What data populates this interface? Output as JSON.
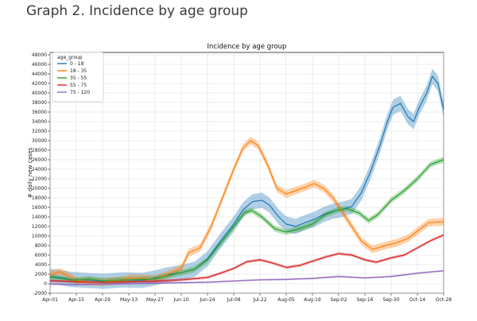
{
  "page": {
    "heading": "Graph 2. Incidence by age group"
  },
  "chart_data": {
    "type": "line",
    "title": "Incidence by age group",
    "xlabel": "",
    "ylabel": "# daily new cases",
    "ylim": [
      -2000,
      48500
    ],
    "yticks": [
      -2000,
      0,
      2000,
      4000,
      6000,
      8000,
      10000,
      12000,
      14000,
      16000,
      18000,
      20000,
      22000,
      24000,
      26000,
      28000,
      30000,
      32000,
      34000,
      36000,
      38000,
      40000,
      42000,
      44000,
      46000,
      48000
    ],
    "xlim": [
      "2020-04-01",
      "2020-10-28"
    ],
    "xticks": [
      {
        "date": "2020-04-01",
        "label": "Apr-01"
      },
      {
        "date": "2020-04-15",
        "label": "Apr-15"
      },
      {
        "date": "2020-04-29",
        "label": "Apr-29"
      },
      {
        "date": "2020-05-13",
        "label": "May-13"
      },
      {
        "date": "2020-05-27",
        "label": "May-27"
      },
      {
        "date": "2020-06-10",
        "label": "Jun-10"
      },
      {
        "date": "2020-06-24",
        "label": "Jun-24"
      },
      {
        "date": "2020-07-08",
        "label": "Jul-08"
      },
      {
        "date": "2020-07-22",
        "label": "Jul-22"
      },
      {
        "date": "2020-08-05",
        "label": "Aug-05"
      },
      {
        "date": "2020-08-19",
        "label": "Aug-19"
      },
      {
        "date": "2020-09-02",
        "label": "Sep-02"
      },
      {
        "date": "2020-09-16",
        "label": "Sep-16"
      },
      {
        "date": "2020-09-30",
        "label": "Sep-30"
      },
      {
        "date": "2020-10-14",
        "label": "Oct-14"
      },
      {
        "date": "2020-10-28",
        "label": "Oct-28"
      }
    ],
    "grid": true,
    "legend": {
      "title": "age_group",
      "placement": "top-left"
    },
    "series": [
      {
        "name": "0 - 18",
        "color": "#1f77b4",
        "points": [
          [
            "2020-04-01",
            1500
          ],
          [
            "2020-04-06",
            1300
          ],
          [
            "2020-04-12",
            900
          ],
          [
            "2020-04-20",
            700
          ],
          [
            "2020-04-29",
            500
          ],
          [
            "2020-05-10",
            800
          ],
          [
            "2020-05-20",
            700
          ],
          [
            "2020-05-27",
            1200
          ],
          [
            "2020-06-03",
            1900
          ],
          [
            "2020-06-10",
            2300
          ],
          [
            "2020-06-17",
            3000
          ],
          [
            "2020-06-24",
            5200
          ],
          [
            "2020-07-01",
            9000
          ],
          [
            "2020-07-08",
            12500
          ],
          [
            "2020-07-13",
            15500
          ],
          [
            "2020-07-18",
            17200
          ],
          [
            "2020-07-23",
            17500
          ],
          [
            "2020-07-27",
            16500
          ],
          [
            "2020-08-01",
            14000
          ],
          [
            "2020-08-05",
            12500
          ],
          [
            "2020-08-10",
            12000
          ],
          [
            "2020-08-15",
            12800
          ],
          [
            "2020-08-20",
            13500
          ],
          [
            "2020-08-25",
            14500
          ],
          [
            "2020-08-30",
            15200
          ],
          [
            "2020-09-04",
            15600
          ],
          [
            "2020-09-09",
            16200
          ],
          [
            "2020-09-14",
            19000
          ],
          [
            "2020-09-19",
            23500
          ],
          [
            "2020-09-24",
            29000
          ],
          [
            "2020-09-28",
            34000
          ],
          [
            "2020-10-01",
            37000
          ],
          [
            "2020-10-05",
            37800
          ],
          [
            "2020-10-09",
            35000
          ],
          [
            "2020-10-12",
            34000
          ],
          [
            "2020-10-15",
            37000
          ],
          [
            "2020-10-19",
            40000
          ],
          [
            "2020-10-22",
            43500
          ],
          [
            "2020-10-25",
            42000
          ],
          [
            "2020-10-28",
            36500
          ]
        ],
        "band": 1600
      },
      {
        "name": "18 - 35",
        "color": "#ff7f0e",
        "points": [
          [
            "2020-04-01",
            1800
          ],
          [
            "2020-04-06",
            2500
          ],
          [
            "2020-04-10",
            1800
          ],
          [
            "2020-04-15",
            600
          ],
          [
            "2020-04-29",
            300
          ],
          [
            "2020-05-08",
            700
          ],
          [
            "2020-05-15",
            1200
          ],
          [
            "2020-05-27",
            1000
          ],
          [
            "2020-06-03",
            2000
          ],
          [
            "2020-06-10",
            3200
          ],
          [
            "2020-06-14",
            6500
          ],
          [
            "2020-06-20",
            7500
          ],
          [
            "2020-06-26",
            12000
          ],
          [
            "2020-07-02",
            18000
          ],
          [
            "2020-07-08",
            24000
          ],
          [
            "2020-07-13",
            28500
          ],
          [
            "2020-07-17",
            30000
          ],
          [
            "2020-07-21",
            29000
          ],
          [
            "2020-07-26",
            25000
          ],
          [
            "2020-07-31",
            20000
          ],
          [
            "2020-08-05",
            18800
          ],
          [
            "2020-08-10",
            19500
          ],
          [
            "2020-08-15",
            20200
          ],
          [
            "2020-08-20",
            21000
          ],
          [
            "2020-08-25",
            20000
          ],
          [
            "2020-08-30",
            18000
          ],
          [
            "2020-09-04",
            15000
          ],
          [
            "2020-09-09",
            12000
          ],
          [
            "2020-09-14",
            9000
          ],
          [
            "2020-09-20",
            7200
          ],
          [
            "2020-09-27",
            8000
          ],
          [
            "2020-10-03",
            8600
          ],
          [
            "2020-10-09",
            9500
          ],
          [
            "2020-10-14",
            11000
          ],
          [
            "2020-10-20",
            12800
          ],
          [
            "2020-10-28",
            13000
          ]
        ],
        "band": 800
      },
      {
        "name": "35 - 55",
        "color": "#2ca02c",
        "points": [
          [
            "2020-04-01",
            1400
          ],
          [
            "2020-04-08",
            1000
          ],
          [
            "2020-04-15",
            700
          ],
          [
            "2020-04-22",
            1000
          ],
          [
            "2020-04-29",
            600
          ],
          [
            "2020-05-13",
            800
          ],
          [
            "2020-05-27",
            1000
          ],
          [
            "2020-06-03",
            1700
          ],
          [
            "2020-06-10",
            2300
          ],
          [
            "2020-06-17",
            3000
          ],
          [
            "2020-06-24",
            5000
          ],
          [
            "2020-07-01",
            8500
          ],
          [
            "2020-07-08",
            12000
          ],
          [
            "2020-07-14",
            15000
          ],
          [
            "2020-07-18",
            15300
          ],
          [
            "2020-07-23",
            14000
          ],
          [
            "2020-07-30",
            11500
          ],
          [
            "2020-08-05",
            10800
          ],
          [
            "2020-08-12",
            11500
          ],
          [
            "2020-08-19",
            12500
          ],
          [
            "2020-08-26",
            14500
          ],
          [
            "2020-09-02",
            15500
          ],
          [
            "2020-09-07",
            15700
          ],
          [
            "2020-09-13",
            14800
          ],
          [
            "2020-09-18",
            13200
          ],
          [
            "2020-09-23",
            14500
          ],
          [
            "2020-09-30",
            17500
          ],
          [
            "2020-10-07",
            19500
          ],
          [
            "2020-10-14",
            22000
          ],
          [
            "2020-10-21",
            25000
          ],
          [
            "2020-10-28",
            26000
          ]
        ],
        "band": 600
      },
      {
        "name": "55 - 75",
        "color": "#d62728",
        "points": [
          [
            "2020-04-01",
            600
          ],
          [
            "2020-04-15",
            400
          ],
          [
            "2020-04-29",
            300
          ],
          [
            "2020-05-13",
            400
          ],
          [
            "2020-05-27",
            500
          ],
          [
            "2020-06-10",
            800
          ],
          [
            "2020-06-24",
            1300
          ],
          [
            "2020-07-01",
            2200
          ],
          [
            "2020-07-08",
            3200
          ],
          [
            "2020-07-15",
            4600
          ],
          [
            "2020-07-22",
            5000
          ],
          [
            "2020-07-29",
            4300
          ],
          [
            "2020-08-05",
            3400
          ],
          [
            "2020-08-12",
            3800
          ],
          [
            "2020-08-19",
            4700
          ],
          [
            "2020-08-26",
            5600
          ],
          [
            "2020-09-02",
            6300
          ],
          [
            "2020-09-09",
            6000
          ],
          [
            "2020-09-16",
            5000
          ],
          [
            "2020-09-22",
            4500
          ],
          [
            "2020-09-30",
            5400
          ],
          [
            "2020-10-07",
            6000
          ],
          [
            "2020-10-14",
            7500
          ],
          [
            "2020-10-21",
            9000
          ],
          [
            "2020-10-28",
            10200
          ]
        ],
        "band": 300
      },
      {
        "name": "75 - 120",
        "color": "#9467bd",
        "points": [
          [
            "2020-04-01",
            -100
          ],
          [
            "2020-04-15",
            -200
          ],
          [
            "2020-05-01",
            -100
          ],
          [
            "2020-05-27",
            100
          ],
          [
            "2020-06-24",
            300
          ],
          [
            "2020-07-22",
            800
          ],
          [
            "2020-08-05",
            900
          ],
          [
            "2020-08-19",
            1100
          ],
          [
            "2020-09-02",
            1500
          ],
          [
            "2020-09-16",
            1200
          ],
          [
            "2020-09-30",
            1500
          ],
          [
            "2020-10-14",
            2200
          ],
          [
            "2020-10-28",
            2700
          ]
        ],
        "band": 200
      }
    ]
  }
}
